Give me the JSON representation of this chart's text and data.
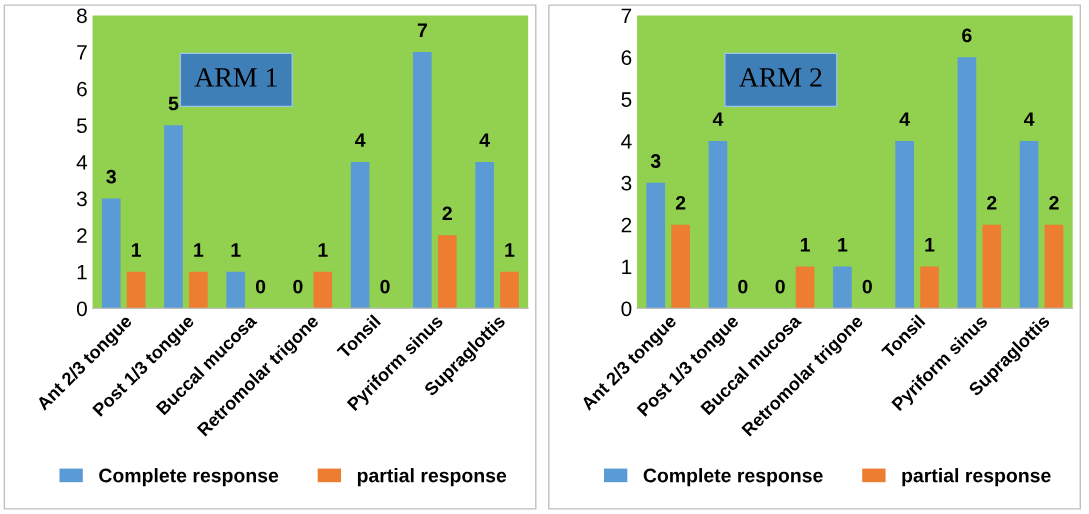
{
  "chart_data": [
    {
      "type": "bar",
      "title": "ARM 1",
      "categories": [
        "Ant 2/3 tongue",
        "Post 1/3 tongue",
        "Buccal mucosa",
        "Retromolar trigone",
        "Tonsil",
        "Pyriform sinus",
        "Supraglottis"
      ],
      "series": [
        {
          "name": "Complete response",
          "color": "#5b9bd5",
          "values": [
            3,
            5,
            1,
            0,
            4,
            7,
            4
          ]
        },
        {
          "name": "partial response",
          "color": "#ed7d31",
          "values": [
            1,
            1,
            0,
            1,
            0,
            2,
            1
          ]
        }
      ],
      "ylim": [
        0,
        8
      ],
      "yticks": [
        0,
        1,
        2,
        3,
        4,
        5,
        6,
        7,
        8
      ],
      "data_labels": true,
      "legend": "bottom",
      "grid": false
    },
    {
      "type": "bar",
      "title": "ARM 2",
      "categories": [
        "Ant 2/3 tongue",
        "Post 1/3 tongue",
        "Buccal mucosa",
        "Retromolar trigone",
        "Tonsil",
        "Pyriform sinus",
        "Supraglottis"
      ],
      "series": [
        {
          "name": "Complete response",
          "color": "#5b9bd5",
          "values": [
            3,
            4,
            0,
            1,
            4,
            6,
            4
          ]
        },
        {
          "name": "partial response",
          "color": "#ed7d31",
          "values": [
            2,
            0,
            1,
            0,
            1,
            2,
            2
          ]
        }
      ],
      "ylim": [
        0,
        7
      ],
      "yticks": [
        0,
        1,
        2,
        3,
        4,
        5,
        6,
        7
      ],
      "data_labels": true,
      "legend": "bottom",
      "grid": false
    }
  ]
}
